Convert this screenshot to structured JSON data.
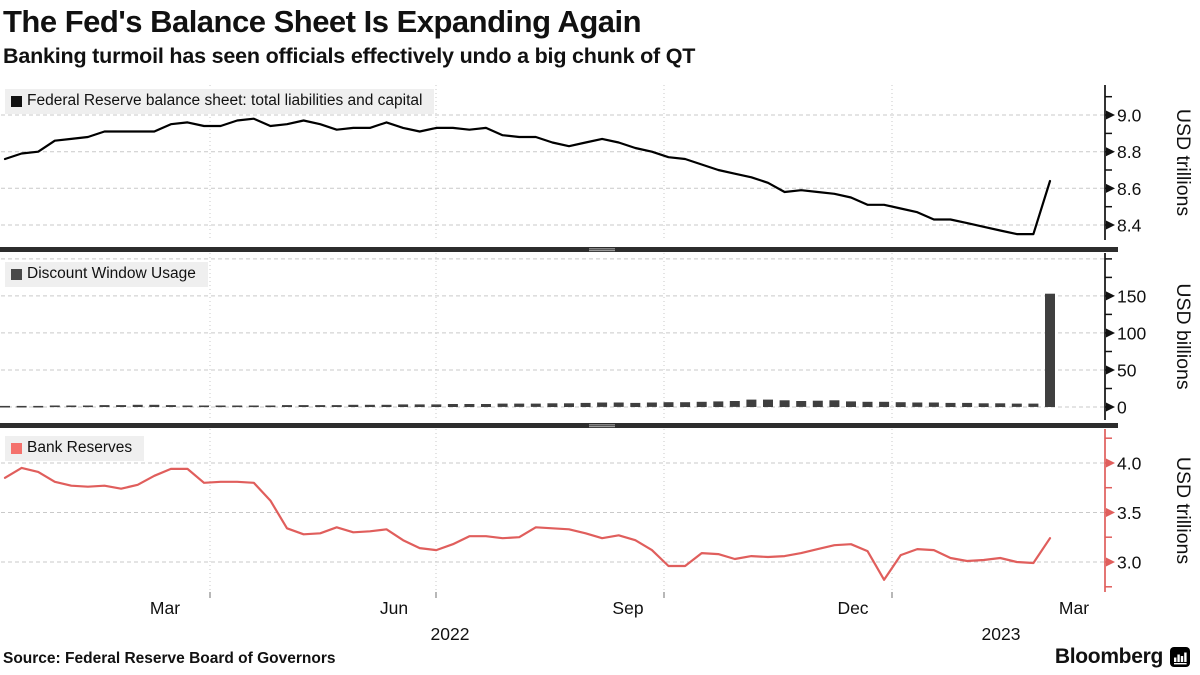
{
  "title": "The Fed's Balance Sheet Is Expanding Again",
  "subtitle": "Banking turmoil has seen officials effectively undo a big chunk of QT",
  "source": "Source: Federal Reserve Board of Governors",
  "brand": {
    "name": "Bloomberg",
    "icon": "bar-chart-icon"
  },
  "chart_data": [
    {
      "id": "balance-sheet",
      "type": "line",
      "name": "Federal Reserve balance sheet: total liabilities and capital",
      "unit": "USD trillions",
      "color": "#000000",
      "swatch_color": "#111111",
      "ylim": [
        8.318,
        9.164
      ],
      "yticks": [
        8.4,
        8.6,
        8.8,
        9.0
      ],
      "ytick_labels": [
        "8.4",
        "8.6",
        "8.8",
        "9.0"
      ],
      "gridlines": [
        8.4,
        8.6,
        8.8,
        9.0
      ],
      "minor_step": 0.1,
      "frequency": "weekly",
      "values": [
        8.76,
        8.79,
        8.8,
        8.86,
        8.87,
        8.88,
        8.91,
        8.91,
        8.91,
        8.91,
        8.95,
        8.96,
        8.94,
        8.94,
        8.97,
        8.98,
        8.94,
        8.95,
        8.97,
        8.95,
        8.92,
        8.93,
        8.93,
        8.96,
        8.93,
        8.91,
        8.93,
        8.93,
        8.92,
        8.93,
        8.89,
        8.88,
        8.88,
        8.85,
        8.83,
        8.85,
        8.87,
        8.85,
        8.82,
        8.8,
        8.77,
        8.76,
        8.73,
        8.7,
        8.68,
        8.66,
        8.63,
        8.58,
        8.59,
        8.58,
        8.57,
        8.55,
        8.51,
        8.51,
        8.49,
        8.47,
        8.43,
        8.43,
        8.41,
        8.39,
        8.37,
        8.35,
        8.35,
        8.64
      ]
    },
    {
      "id": "discount-window",
      "type": "bar",
      "name": "Discount Window Usage",
      "unit": "USD billions",
      "color": "#3f3f3f",
      "swatch_color": "#4a4a4a",
      "ylim": [
        -17.6,
        208
      ],
      "yticks": [
        0,
        50,
        100,
        150
      ],
      "ytick_labels": [
        "0",
        "50",
        "100",
        "150"
      ],
      "gridlines": [
        0,
        50,
        100,
        150,
        200
      ],
      "minor_step": 25,
      "frequency": "weekly",
      "values": [
        1.5,
        1.5,
        1.5,
        2,
        2,
        2,
        2.5,
        2.5,
        3,
        3,
        2.5,
        2,
        2,
        2,
        2,
        2,
        2,
        2.5,
        2.5,
        2.5,
        2.5,
        3,
        3,
        3,
        3.5,
        3.5,
        3.5,
        4,
        4,
        4,
        4.5,
        4.5,
        4.5,
        5,
        5,
        5.5,
        6,
        6,
        5.5,
        6,
        6.5,
        6.5,
        7,
        7.5,
        8,
        10,
        10,
        9,
        8,
        8.5,
        9,
        7.5,
        7,
        7,
        6.5,
        6,
        6,
        5.5,
        5.5,
        5,
        5,
        4.5,
        4.5,
        153
      ]
    },
    {
      "id": "bank-reserves",
      "type": "line",
      "name": "Bank Reserves",
      "unit": "USD trillions",
      "color": "#e05e5c",
      "swatch_color": "#f4716c",
      "axis_color": "#e05e5c",
      "ylim": [
        2.697,
        4.343
      ],
      "yticks": [
        3.0,
        3.5,
        4.0
      ],
      "ytick_labels": [
        "3.0",
        "3.5",
        "4.0"
      ],
      "gridlines": [
        3.0,
        3.5,
        4.0
      ],
      "minor_step": 0.25,
      "frequency": "weekly",
      "values": [
        3.85,
        3.95,
        3.91,
        3.81,
        3.77,
        3.76,
        3.77,
        3.74,
        3.78,
        3.87,
        3.94,
        3.94,
        3.8,
        3.81,
        3.81,
        3.8,
        3.62,
        3.34,
        3.28,
        3.29,
        3.35,
        3.3,
        3.31,
        3.33,
        3.22,
        3.14,
        3.12,
        3.18,
        3.26,
        3.26,
        3.24,
        3.25,
        3.35,
        3.34,
        3.33,
        3.29,
        3.24,
        3.27,
        3.22,
        3.12,
        2.96,
        2.96,
        3.09,
        3.08,
        3.03,
        3.06,
        3.05,
        3.06,
        3.09,
        3.13,
        3.17,
        3.18,
        3.11,
        2.82,
        3.07,
        3.13,
        3.12,
        3.04,
        3.01,
        3.02,
        3.04,
        3.0,
        2.99,
        3.24
      ]
    }
  ],
  "x_axis": {
    "months": [
      {
        "label": "Mar",
        "x": 165
      },
      {
        "label": "Jun",
        "x": 394
      },
      {
        "label": "Sep",
        "x": 628
      },
      {
        "label": "Dec",
        "x": 853
      },
      {
        "label": "Mar",
        "x": 1074
      }
    ],
    "years": [
      {
        "label": "2022",
        "x": 450
      },
      {
        "label": "2023",
        "x": 1001
      }
    ],
    "gridline_x": [
      210,
      436,
      664,
      892
    ]
  }
}
